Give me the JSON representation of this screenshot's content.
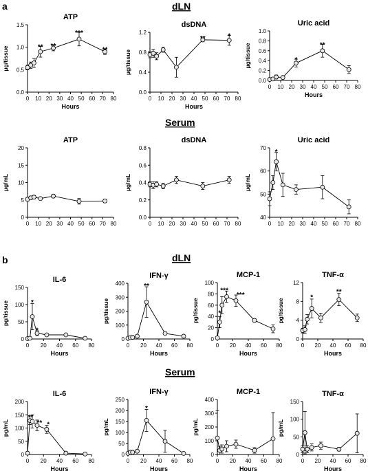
{
  "figure": {
    "panel_a_label": "a",
    "panel_b_label": "b",
    "a_dln_header": "dLN",
    "a_serum_header": "Serum",
    "b_dln_header": "dLN",
    "b_serum_header": "Serum"
  },
  "chart_data": [
    {
      "id": "a_dln_atp",
      "type": "line",
      "title": "ATP",
      "xlabel": "Hours",
      "ylabel": "μg/tissue",
      "xlim": [
        0,
        80
      ],
      "ylim": [
        0,
        1.5
      ],
      "xticks": [
        0,
        10,
        20,
        30,
        40,
        50,
        60,
        70,
        80
      ],
      "yticks": [
        0,
        0.5,
        1.0,
        1.5
      ],
      "ytick_labels": [
        "0.0",
        "0.5",
        "1.0",
        "1.5"
      ],
      "series": [
        {
          "x": [
            0,
            3,
            6,
            12,
            24,
            48,
            72
          ],
          "y": [
            0.55,
            0.6,
            0.65,
            0.9,
            0.98,
            1.18,
            0.9
          ],
          "err": [
            0.05,
            0.07,
            0.1,
            0.12,
            0.06,
            0.15,
            0.06
          ]
        }
      ],
      "annotations": [
        {
          "x": 12,
          "y": 1.02,
          "text": "**"
        },
        {
          "x": 24,
          "y": 1.04,
          "text": "**"
        },
        {
          "x": 48,
          "y": 1.33,
          "text": "***"
        },
        {
          "x": 72,
          "y": 0.96,
          "text": "**"
        }
      ]
    },
    {
      "id": "a_dln_dsdna",
      "type": "line",
      "title": "dsDNA",
      "xlabel": "Hours",
      "ylabel": "μg/tissue",
      "xlim": [
        0,
        80
      ],
      "ylim": [
        0,
        1.2
      ],
      "xticks": [
        0,
        10,
        20,
        30,
        40,
        50,
        60,
        70,
        80
      ],
      "yticks": [
        0,
        0.4,
        0.8,
        1.2
      ],
      "ytick_labels": [
        "0.0",
        "0.4",
        "0.8",
        "1.2"
      ],
      "series": [
        {
          "x": [
            0,
            3,
            6,
            12,
            24,
            48,
            72
          ],
          "y": [
            0.75,
            0.78,
            0.72,
            0.85,
            0.5,
            1.05,
            1.04
          ],
          "err": [
            0.06,
            0.08,
            0.07,
            0.05,
            0.2,
            0.04,
            0.1
          ]
        }
      ],
      "annotations": [
        {
          "x": 48,
          "y": 1.09,
          "text": "**"
        },
        {
          "x": 72,
          "y": 1.14,
          "text": "*"
        }
      ]
    },
    {
      "id": "a_dln_uric",
      "type": "line",
      "title": "Uric acid",
      "xlabel": "Hours",
      "ylabel": "μg/tissue",
      "xlim": [
        0,
        80
      ],
      "ylim": [
        0,
        1.0
      ],
      "xticks": [
        0,
        10,
        20,
        30,
        40,
        50,
        60,
        70,
        80
      ],
      "yticks": [
        0,
        0.2,
        0.4,
        0.6,
        0.8,
        1.0
      ],
      "ytick_labels": [
        "0.0",
        "0.2",
        "0.4",
        "0.6",
        "0.8",
        "1.0"
      ],
      "series": [
        {
          "x": [
            0,
            3,
            6,
            12,
            24,
            48,
            72
          ],
          "y": [
            0.02,
            0.03,
            0.07,
            0.06,
            0.35,
            0.6,
            0.22
          ],
          "err": [
            0.02,
            0.03,
            0.04,
            0.03,
            0.08,
            0.13,
            0.08
          ]
        }
      ],
      "annotations": [
        {
          "x": 24,
          "y": 0.43,
          "text": "*"
        },
        {
          "x": 48,
          "y": 0.73,
          "text": "**"
        }
      ]
    },
    {
      "id": "a_serum_atp",
      "type": "line",
      "title": "ATP",
      "xlabel": "",
      "ylabel": "μg/mL",
      "xlim": [
        0,
        80
      ],
      "ylim": [
        0,
        20
      ],
      "xticks": [
        0,
        10,
        20,
        30,
        40,
        50,
        60,
        70,
        80
      ],
      "yticks": [
        0,
        5,
        10,
        15,
        20
      ],
      "ytick_labels": [
        "0",
        "5",
        "10",
        "15",
        "20"
      ],
      "series": [
        {
          "x": [
            0,
            3,
            6,
            12,
            24,
            48,
            72
          ],
          "y": [
            5.2,
            5.6,
            5.8,
            5.4,
            6.1,
            4.6,
            4.7
          ],
          "err": [
            0.5,
            0.5,
            0.5,
            0.4,
            0.5,
            0.8,
            0.5
          ]
        }
      ],
      "annotations": []
    },
    {
      "id": "a_serum_dsdna",
      "type": "line",
      "title": "dsDNA",
      "xlabel": "",
      "ylabel": "μg/mL",
      "xlim": [
        0,
        80
      ],
      "ylim": [
        0,
        0.8
      ],
      "xticks": [
        0,
        10,
        20,
        30,
        40,
        50,
        60,
        70,
        80
      ],
      "yticks": [
        0,
        0.2,
        0.4,
        0.6,
        0.8
      ],
      "ytick_labels": [
        "0.0",
        "0.2",
        "0.4",
        "0.6",
        "0.8"
      ],
      "series": [
        {
          "x": [
            0,
            3,
            6,
            12,
            24,
            48,
            72
          ],
          "y": [
            0.38,
            0.37,
            0.38,
            0.36,
            0.43,
            0.36,
            0.43
          ],
          "err": [
            0.03,
            0.04,
            0.03,
            0.03,
            0.04,
            0.04,
            0.04
          ]
        }
      ],
      "annotations": []
    },
    {
      "id": "a_serum_uric",
      "type": "line",
      "title": "Uric acid",
      "xlabel": "",
      "ylabel": "μg/mL",
      "xlim": [
        0,
        80
      ],
      "ylim": [
        40,
        70
      ],
      "xticks": [
        0,
        10,
        20,
        30,
        40,
        50,
        60,
        70,
        80
      ],
      "yticks": [
        40,
        50,
        60,
        70
      ],
      "ytick_labels": [
        "40",
        "50",
        "60",
        "70"
      ],
      "series": [
        {
          "x": [
            0,
            3,
            6,
            12,
            24,
            48,
            72
          ],
          "y": [
            48,
            55,
            64,
            54,
            52,
            53,
            44.5
          ],
          "err": [
            3,
            3,
            4,
            5,
            2,
            5,
            3
          ]
        }
      ],
      "annotations": [
        {
          "x": 6,
          "y": 68.5,
          "text": "*"
        }
      ]
    },
    {
      "id": "b_dln_il6",
      "type": "line",
      "title": "IL-6",
      "xlabel": "Hours",
      "ylabel": "pg/tissue",
      "xlim": [
        0,
        80
      ],
      "ylim": [
        0,
        150
      ],
      "xticks": [
        0,
        20,
        40,
        60,
        80
      ],
      "yticks": [
        0,
        50,
        100,
        150
      ],
      "ytick_labels": [
        "0",
        "50",
        "100",
        "150"
      ],
      "series": [
        {
          "x": [
            0,
            3,
            6,
            12,
            24,
            48,
            72
          ],
          "y": [
            1,
            2,
            65,
            17,
            12,
            12,
            2
          ],
          "err": [
            1,
            2,
            38,
            7,
            4,
            3,
            1
          ]
        }
      ],
      "annotations": [
        {
          "x": 6,
          "y": 108,
          "text": "*"
        },
        {
          "x": 12,
          "y": 27,
          "text": "*"
        }
      ]
    },
    {
      "id": "b_dln_ifng",
      "type": "line",
      "title": "IFN-γ",
      "xlabel": "Hours",
      "ylabel": "pg/tissue",
      "xlim": [
        0,
        80
      ],
      "ylim": [
        0,
        400
      ],
      "xticks": [
        0,
        20,
        40,
        60,
        80
      ],
      "yticks": [
        0,
        100,
        200,
        300,
        400
      ],
      "ytick_labels": [
        "0",
        "100",
        "200",
        "300",
        "400"
      ],
      "series": [
        {
          "x": [
            0,
            3,
            6,
            12,
            24,
            48,
            72
          ],
          "y": [
            5,
            10,
            12,
            20,
            265,
            40,
            20
          ],
          "err": [
            3,
            5,
            5,
            10,
            110,
            8,
            5
          ]
        }
      ],
      "annotations": [
        {
          "x": 24,
          "y": 385,
          "text": "**"
        }
      ]
    },
    {
      "id": "b_dln_mcp1",
      "type": "line",
      "title": "MCP-1",
      "xlabel": "Hours",
      "ylabel": "pg/tissue",
      "xlim": [
        0,
        80
      ],
      "ylim": [
        0,
        100
      ],
      "xticks": [
        0,
        20,
        40,
        60,
        80
      ],
      "yticks": [
        0,
        20,
        40,
        60,
        80,
        100
      ],
      "ytick_labels": [
        "0",
        "20",
        "40",
        "60",
        "80",
        "100"
      ],
      "series": [
        {
          "x": [
            0,
            3,
            6,
            12,
            24,
            48,
            72
          ],
          "y": [
            2,
            30,
            60,
            75,
            68,
            33,
            18
          ],
          "err": [
            1,
            10,
            15,
            10,
            10,
            3,
            7
          ]
        }
      ],
      "annotations": [
        {
          "x": 3,
          "y": 47,
          "text": "*"
        },
        {
          "x": 9,
          "y": 87,
          "text": "***"
        },
        {
          "x": 30,
          "y": 79,
          "text": "***"
        }
      ]
    },
    {
      "id": "b_dln_tnfa",
      "type": "line",
      "title": "TNF-α",
      "xlabel": "Hours",
      "ylabel": "pg/tissue",
      "xlim": [
        0,
        80
      ],
      "ylim": [
        0,
        12
      ],
      "xticks": [
        0,
        20,
        40,
        60,
        80
      ],
      "yticks": [
        0,
        4,
        8,
        12
      ],
      "ytick_labels": [
        "0",
        "4",
        "8",
        "12"
      ],
      "series": [
        {
          "x": [
            0,
            3,
            6,
            12,
            24,
            48,
            72
          ],
          "y": [
            1.8,
            2,
            4.2,
            6.5,
            4.5,
            8.4,
            4.5
          ],
          "err": [
            0.5,
            0.8,
            1,
            2,
            1,
            1.3,
            0.8
          ]
        }
      ],
      "annotations": [
        {
          "x": 12,
          "y": 9,
          "text": "*"
        },
        {
          "x": 48,
          "y": 10.2,
          "text": "**"
        }
      ]
    },
    {
      "id": "b_serum_il6",
      "type": "line",
      "title": "IL-6",
      "xlabel": "Hours",
      "ylabel": "pg/mL",
      "xlim": [
        0,
        80
      ],
      "ylim": [
        0,
        200
      ],
      "xticks": [
        0,
        20,
        40,
        60,
        80
      ],
      "yticks": [
        0,
        50,
        100,
        150,
        200
      ],
      "ytick_labels": [
        "0",
        "50",
        "100",
        "150",
        "200"
      ],
      "series": [
        {
          "x": [
            0,
            3,
            6,
            12,
            24,
            48,
            72
          ],
          "y": [
            5,
            128,
            125,
            110,
            95,
            5,
            2
          ],
          "err": [
            3,
            15,
            25,
            20,
            15,
            2,
            1
          ]
        }
      ],
      "annotations": [
        {
          "x": 4,
          "y": 143,
          "text": "**"
        },
        {
          "x": 15,
          "y": 122,
          "text": "**"
        },
        {
          "x": 26,
          "y": 115,
          "text": "*"
        }
      ]
    },
    {
      "id": "b_serum_ifng",
      "type": "line",
      "title": "IFN-γ",
      "xlabel": "Hours",
      "ylabel": "pg/mL",
      "xlim": [
        0,
        80
      ],
      "ylim": [
        0,
        250
      ],
      "xticks": [
        0,
        20,
        40,
        60,
        80
      ],
      "yticks": [
        0,
        50,
        100,
        150,
        200,
        250
      ],
      "ytick_labels": [
        "0",
        "50",
        "100",
        "150",
        "200",
        "250"
      ],
      "series": [
        {
          "x": [
            0,
            3,
            6,
            12,
            24,
            48,
            72
          ],
          "y": [
            5,
            10,
            10,
            15,
            155,
            60,
            5
          ],
          "err": [
            3,
            5,
            5,
            5,
            50,
            50,
            3
          ]
        }
      ],
      "annotations": [
        {
          "x": 24,
          "y": 212,
          "text": "*"
        }
      ]
    },
    {
      "id": "b_serum_mcp1",
      "type": "line",
      "title": "MCP-1",
      "xlabel": "Hours",
      "ylabel": "pg/mL",
      "xlim": [
        0,
        80
      ],
      "ylim": [
        0,
        400
      ],
      "xticks": [
        0,
        20,
        40,
        60,
        80
      ],
      "yticks": [
        0,
        100,
        200,
        300,
        400
      ],
      "ytick_labels": [
        "0",
        "100",
        "200",
        "300",
        "400"
      ],
      "series": [
        {
          "x": [
            0,
            3,
            6,
            12,
            24,
            48,
            72
          ],
          "y": [
            120,
            30,
            40,
            60,
            75,
            30,
            115
          ],
          "err": [
            200,
            30,
            30,
            40,
            30,
            20,
            190
          ]
        }
      ],
      "annotations": []
    },
    {
      "id": "b_serum_tnfa",
      "type": "line",
      "title": "TNF-α",
      "xlabel": "Hours",
      "ylabel": "pg/mL",
      "xlim": [
        0,
        80
      ],
      "ylim": [
        0,
        150
      ],
      "xticks": [
        0,
        20,
        40,
        60,
        80
      ],
      "yticks": [
        0,
        50,
        100,
        150
      ],
      "ytick_labels": [
        "0",
        "50",
        "100",
        "150"
      ],
      "series": [
        {
          "x": [
            0,
            3,
            6,
            12,
            24,
            48,
            72
          ],
          "y": [
            15,
            62,
            15,
            20,
            25,
            15,
            60
          ],
          "err": [
            10,
            60,
            10,
            10,
            10,
            5,
            55
          ]
        }
      ],
      "annotations": []
    }
  ]
}
